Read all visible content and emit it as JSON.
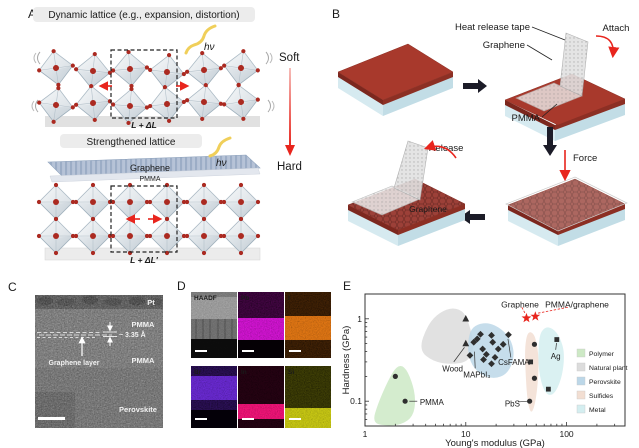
{
  "colors": {
    "accent_red": "#e8251d",
    "photon_yellow": "#d4b244",
    "marker_dark": "#2f2f2f"
  },
  "panelA": {
    "label": "A",
    "top_title": "Dynamic lattice (e.g., expansion, distortion)",
    "bottom_title": "Strengthened lattice",
    "hv": "hν",
    "soft": "Soft",
    "hard": "Hard",
    "delta_top": "L + ΔL",
    "delta_bottom": "L + ΔL′",
    "graphene": "Graphene",
    "pmma": "PMMA"
  },
  "panelB": {
    "label": "B",
    "heat_release_tape": "Heat release tape",
    "graphene": "Graphene",
    "pmma": "PMMA",
    "attach": "Attach",
    "force": "Force",
    "release": "Release",
    "graphene_on_film": "Graphene"
  },
  "panelC": {
    "label": "C",
    "pt": "Pt",
    "pmma_top": "PMMA",
    "d_spacing": "~ 3.35 Å",
    "graphene_layer": "Graphene layer",
    "pmma_bottom": "PMMA",
    "perovskite": "Perovskite"
  },
  "panelD": {
    "label": "D",
    "tiles": [
      {
        "label": "HAADF",
        "color": "#c2c2c2"
      },
      {
        "label": "Pb",
        "color": "#d414d4"
      },
      {
        "label": "I",
        "color": "#e07614"
      },
      {
        "label": "Br",
        "color": "#6a2ad2"
      },
      {
        "label": "In",
        "color": "#f01478"
      },
      {
        "label": "Si",
        "color": "#c8c814"
      }
    ]
  },
  "panelE": {
    "label": "E"
  },
  "chart_data": {
    "type": "scatter",
    "xlabel": "Young's modulus (GPa)",
    "ylabel": "Hardness (GPa)",
    "xscale": "log",
    "yscale": "log",
    "xlim": [
      1,
      380
    ],
    "ylim": [
      0.05,
      2
    ],
    "xticks": [
      1,
      10,
      100
    ],
    "yticks": [
      0.1,
      1
    ],
    "grid": false,
    "legend_position": "right-inside",
    "legend": [
      {
        "label": "Polymer",
        "color": "#cde9c5"
      },
      {
        "label": "Natural plant",
        "color": "#dcdcdc"
      },
      {
        "label": "Perovskite",
        "color": "#bcd7e8"
      },
      {
        "label": "Sulfides",
        "color": "#f2ded2"
      },
      {
        "label": "Metal",
        "color": "#d4eef0"
      }
    ],
    "regions": [
      {
        "name": "Natural plant",
        "color": "#dcdcdc",
        "points": [
          [
            3.4,
            0.42
          ],
          [
            4.2,
            0.85
          ],
          [
            5.5,
            1.2
          ],
          [
            7.5,
            1.38
          ],
          [
            9.8,
            1.2
          ],
          [
            11.2,
            0.75
          ],
          [
            12.2,
            0.45
          ],
          [
            10.5,
            0.3
          ],
          [
            7.2,
            0.28
          ],
          [
            4.8,
            0.3
          ]
        ]
      },
      {
        "name": "Polymer",
        "color": "#cde9c5",
        "points": [
          [
            1.18,
            0.055
          ],
          [
            1.35,
            0.095
          ],
          [
            1.7,
            0.18
          ],
          [
            2.05,
            0.265
          ],
          [
            2.45,
            0.27
          ],
          [
            2.9,
            0.18
          ],
          [
            3.2,
            0.105
          ],
          [
            3.0,
            0.065
          ],
          [
            2.3,
            0.052
          ],
          [
            1.6,
            0.05
          ]
        ]
      },
      {
        "name": "Perovskite",
        "color": "#bcd7e8",
        "points": [
          [
            10.4,
            0.46
          ],
          [
            11,
            0.72
          ],
          [
            13,
            0.86
          ],
          [
            17,
            0.9
          ],
          [
            22.5,
            0.76
          ],
          [
            28.5,
            0.55
          ],
          [
            30.5,
            0.34
          ],
          [
            26,
            0.215
          ],
          [
            19,
            0.185
          ],
          [
            13.5,
            0.215
          ],
          [
            11,
            0.3
          ]
        ]
      },
      {
        "name": "Metal",
        "color": "#d4eef0",
        "points": [
          [
            53,
            0.62
          ],
          [
            61,
            0.8
          ],
          [
            73,
            0.77
          ],
          [
            86,
            0.6
          ],
          [
            96,
            0.38
          ],
          [
            90,
            0.19
          ],
          [
            74,
            0.115
          ],
          [
            60,
            0.125
          ],
          [
            52,
            0.25
          ]
        ]
      },
      {
        "name": "Sulfides",
        "color": "#f2ded2",
        "points": [
          [
            41,
            0.7
          ],
          [
            47.5,
            0.67
          ],
          [
            52,
            0.44
          ],
          [
            53,
            0.24
          ],
          [
            50,
            0.105
          ],
          [
            45,
            0.068
          ],
          [
            41,
            0.095
          ],
          [
            39,
            0.24
          ],
          [
            38.5,
            0.45
          ]
        ]
      }
    ],
    "series": [
      {
        "name": "Polymer",
        "marker": "circle",
        "points": [
          [
            2.0,
            0.2
          ],
          [
            2.5,
            0.1
          ]
        ]
      },
      {
        "name": "Natural plant",
        "marker": "triangle",
        "points": [
          [
            10,
            1.0
          ],
          [
            10,
            0.5
          ]
        ]
      },
      {
        "name": "Perovskite",
        "marker": "diamond",
        "points": [
          [
            11,
            0.36
          ],
          [
            12,
            0.52
          ],
          [
            13,
            0.57
          ],
          [
            14,
            0.65
          ],
          [
            14.7,
            0.43
          ],
          [
            16,
            0.37
          ],
          [
            15,
            0.32
          ],
          [
            18,
            0.63
          ],
          [
            18.5,
            0.52
          ],
          [
            19.5,
            0.34
          ],
          [
            21,
            0.43
          ],
          [
            23.5,
            0.49
          ],
          [
            18,
            0.285
          ],
          [
            26.5,
            0.64
          ]
        ]
      },
      {
        "name": "Sulfides",
        "marker": "circle",
        "points": [
          [
            48,
            0.49
          ],
          [
            48,
            0.19
          ],
          [
            43,
            0.1
          ]
        ]
      },
      {
        "name": "Sulfides-sq",
        "marker": "square",
        "points": [
          [
            44,
            0.3
          ]
        ]
      },
      {
        "name": "Metal",
        "marker": "square",
        "points": [
          [
            80,
            0.56
          ],
          [
            66,
            0.14
          ]
        ]
      }
    ],
    "stars": {
      "color": "#e8251d",
      "points": [
        {
          "label": "Graphene",
          "x": 40,
          "y": 1.02,
          "label_x": 34.5,
          "label_y": 1.5,
          "line": [
            36,
            1.38,
            39,
            1.15
          ]
        },
        {
          "label": "PMMA/graphene",
          "x": 49,
          "y": 1.07,
          "label_x": 127,
          "label_y": 1.5,
          "line": [
            103,
            1.38,
            52,
            1.17
          ]
        }
      ]
    },
    "annotations": [
      {
        "text": "Wood",
        "x": 7.4,
        "y": 0.25,
        "anchor": "middle",
        "line": [
          7.6,
          0.3,
          9.7,
          0.45
        ]
      },
      {
        "text": "MAPbI₃",
        "x": 12.9,
        "y": 0.21,
        "anchor": "middle",
        "line": [
          12.4,
          0.25,
          12.2,
          0.4
        ]
      },
      {
        "text": "CsFAMA",
        "x": 30,
        "y": 0.3,
        "anchor": "middle",
        "line": [
          28,
          0.34,
          26.2,
          0.57
        ]
      },
      {
        "text": "PMMA",
        "x": 3.5,
        "y": 0.098,
        "anchor": "start",
        "line": [
          3.3,
          0.1,
          2.75,
          0.1
        ]
      },
      {
        "text": "PbS",
        "x": 29,
        "y": 0.094,
        "anchor": "middle",
        "line": [
          33,
          0.098,
          41,
          0.1
        ]
      },
      {
        "text": "Ag",
        "x": 78,
        "y": 0.355,
        "anchor": "middle",
        "line": [
          78,
          0.42,
          79.5,
          0.51
        ]
      }
    ]
  }
}
